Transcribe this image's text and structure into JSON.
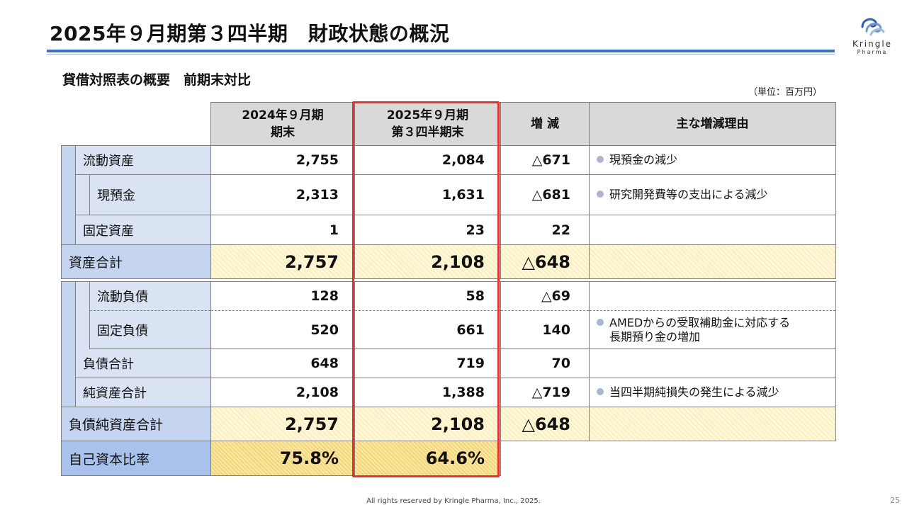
{
  "title": "2025年９月期第３四半期　財政状態の概況",
  "logo": {
    "name": "Kringle",
    "sub": "Pharma",
    "icon": "kringle-swirl-logo"
  },
  "subtitle": "貸借対照表の概要　前期末対比",
  "unit_note": "（単位：百万円）",
  "headers": {
    "col1_line1": "2024年９月期",
    "col1_line2": "期末",
    "col2_line1": "2025年９月期",
    "col2_line2": "第３四半期末",
    "col3": "増 減",
    "col4": "主な増減理由"
  },
  "rows": {
    "current_assets": {
      "label": "流動資産",
      "prev": "2,755",
      "curr": "2,084",
      "diff": "△671",
      "reason": "現預金の減少"
    },
    "cash": {
      "label": "現預金",
      "prev": "2,313",
      "curr": "1,631",
      "diff": "△681",
      "reason": "研究開発費等の支出による減少"
    },
    "fixed_assets": {
      "label": "固定資産",
      "prev": "1",
      "curr": "23",
      "diff": "22",
      "reason": ""
    },
    "total_assets": {
      "label": "資産合計",
      "prev": "2,757",
      "curr": "2,108",
      "diff": "△648"
    },
    "current_liabilities": {
      "label": "流動負債",
      "prev": "128",
      "curr": "58",
      "diff": "△69",
      "reason": ""
    },
    "fixed_liabilities": {
      "label": "固定負債",
      "prev": "520",
      "curr": "661",
      "diff": "140",
      "reason_line1": "AMEDからの受取補助金に対応する",
      "reason_line2": "長期預り金の増加"
    },
    "total_liabilities": {
      "label": "負債合計",
      "prev": "648",
      "curr": "719",
      "diff": "70",
      "reason": ""
    },
    "net_assets": {
      "label": "純資産合計",
      "prev": "2,108",
      "curr": "1,388",
      "diff": "△719",
      "reason": "当四半期純損失の発生による減少"
    },
    "total_liab_net": {
      "label": "負債純資産合計",
      "prev": "2,757",
      "curr": "2,108",
      "diff": "△648"
    },
    "equity_ratio": {
      "label": "自己資本比率",
      "prev": "75.8%",
      "curr": "64.6%"
    }
  },
  "footer": "All rights reserved by Kringle Pharma, Inc., 2025.",
  "page_number": "25",
  "colors": {
    "accent": "#3e73b8",
    "highlight": "#e23232",
    "label_bg": "#dae3f3",
    "total_bg": "#c5d5ef",
    "ratio_bg": "#a9c2ec",
    "hatch_bg": "#fff7d6"
  }
}
